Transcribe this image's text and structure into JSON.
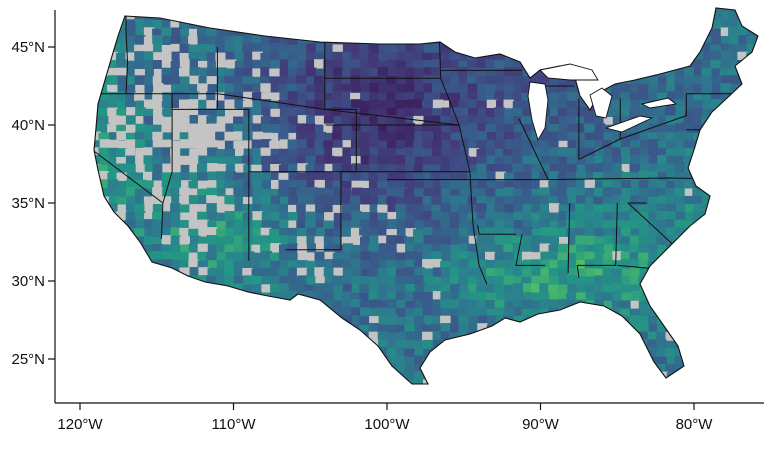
{
  "map": {
    "axes": {
      "x_ticks": [
        {
          "value": -120,
          "label": "120°W"
        },
        {
          "value": -110,
          "label": "110°W"
        },
        {
          "value": -100,
          "label": "100°W"
        },
        {
          "value": -90,
          "label": "90°W"
        },
        {
          "value": -80,
          "label": "80°W"
        }
      ],
      "y_ticks": [
        {
          "value": 45,
          "label": "45°N"
        },
        {
          "value": 40,
          "label": "40°N"
        },
        {
          "value": 35,
          "label": "35°N"
        },
        {
          "value": 30,
          "label": "30°N"
        },
        {
          "value": 25,
          "label": "25°N"
        }
      ]
    },
    "colors": {
      "no_data": "#c4c4c4",
      "land_base": "#3f6f8c",
      "state_border": "#111111",
      "palette": "viridis",
      "viridis_low": "#3b1f5c",
      "viridis_high": "#a8d84a"
    }
  }
}
